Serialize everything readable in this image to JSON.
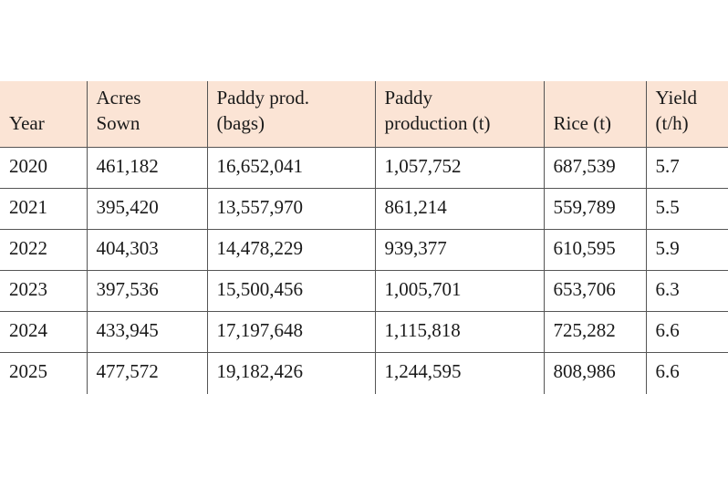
{
  "table": {
    "headers": [
      [
        "Year"
      ],
      [
        "Acres",
        "Sown"
      ],
      [
        "Paddy prod.",
        "(bags)"
      ],
      [
        "Paddy",
        "production (t)"
      ],
      [
        "Rice (t)"
      ],
      [
        "Yield",
        "(t/h)"
      ]
    ],
    "rows": [
      [
        "2020",
        "461,182",
        "16,652,041",
        "1,057,752",
        "687,539",
        "5.7"
      ],
      [
        "2021",
        "395,420",
        "13,557,970",
        "861,214",
        "559,789",
        "5.5"
      ],
      [
        "2022",
        "404,303",
        "14,478,229",
        "939,377",
        "610,595",
        "5.9"
      ],
      [
        "2023",
        "397,536",
        "15,500,456",
        "1,005,701",
        "653,706",
        "6.3"
      ],
      [
        "2024",
        "433,945",
        "17,197,648",
        "1,115,818",
        "725,282",
        "6.6"
      ],
      [
        "2025",
        "477,572",
        "19,182,426",
        "1,244,595",
        "808,986",
        "6.6"
      ]
    ]
  },
  "colors": {
    "header_background": "#fbe4d5",
    "grid_line": "#555555"
  }
}
